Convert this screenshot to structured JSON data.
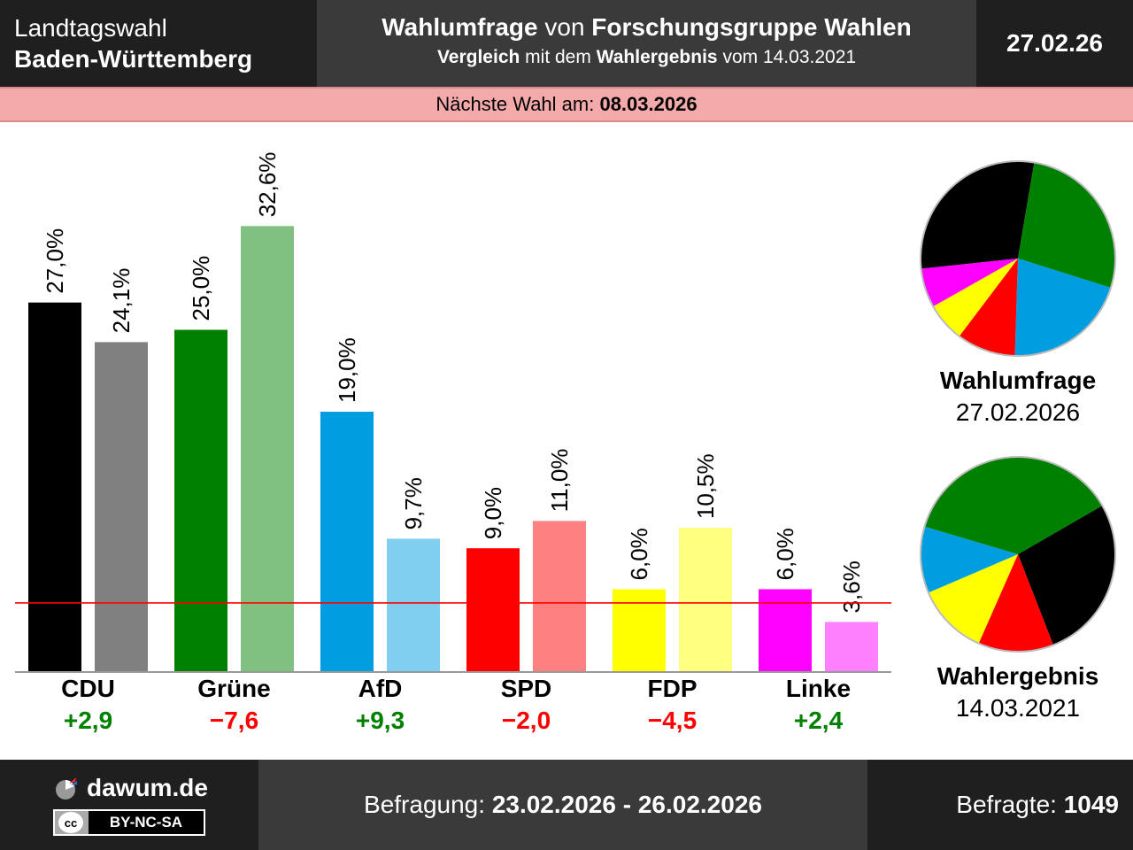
{
  "header": {
    "left_line1": "Landtagswahl",
    "left_line2": "Baden-Württemberg",
    "mid_line1_a": "Wahlumfrage",
    "mid_line1_b": " von ",
    "mid_line1_c": "Forschungsgruppe Wahlen",
    "mid_line2_a": "Vergleich",
    "mid_line2_b": " mit dem ",
    "mid_line2_c": "Wahlergebnis",
    "mid_line2_d": " vom 14.03.2021",
    "date": "27.02.26"
  },
  "next_election": {
    "label": "Nächste Wahl am: ",
    "date": "08.03.2026"
  },
  "chart_data": {
    "type": "bar",
    "categories": [
      "CDU",
      "Grüne",
      "AfD",
      "SPD",
      "FDP",
      "Linke"
    ],
    "series": [
      {
        "name": "Wahlumfrage",
        "values": [
          27.0,
          25.0,
          19.0,
          9.0,
          6.0,
          6.0
        ],
        "labels": [
          "27,0%",
          "25,0%",
          "19,0%",
          "9,0%",
          "6,0%",
          "6,0%"
        ]
      },
      {
        "name": "Wahlergebnis",
        "values": [
          24.1,
          32.6,
          9.7,
          11.0,
          10.5,
          3.6
        ],
        "labels": [
          "24,1%",
          "32,6%",
          "9,7%",
          "11,0%",
          "10,5%",
          "3,6%"
        ]
      }
    ],
    "colors_poll": [
      "#000000",
      "#008000",
      "#009ee0",
      "#ff0000",
      "#ffff00",
      "#ff00ff"
    ],
    "colors_result": [
      "#808080",
      "#80c080",
      "#80cff0",
      "#ff8080",
      "#ffff80",
      "#ff80ff"
    ],
    "differences": [
      "+2,9",
      "−7,6",
      "+9,3",
      "−2,0",
      "−4,5",
      "+2,4"
    ],
    "difference_colors": [
      "#008000",
      "#ff0000",
      "#008000",
      "#ff0000",
      "#ff0000",
      "#008000"
    ],
    "threshold": 5,
    "threshold_color": "#ff0000"
  },
  "pies": {
    "poll_title": "Wahlumfrage",
    "poll_date": "27.02.2026",
    "result_title": "Wahlergebnis",
    "result_date": "14.03.2021"
  },
  "footer": {
    "site": "dawum.de",
    "license": "BY-NC-SA",
    "license_cc": "cc",
    "survey_label": "Befragung: ",
    "survey_period": "23.02.2026 - 26.02.2026",
    "respondents_label": "Befragte: ",
    "respondents": "1049"
  }
}
